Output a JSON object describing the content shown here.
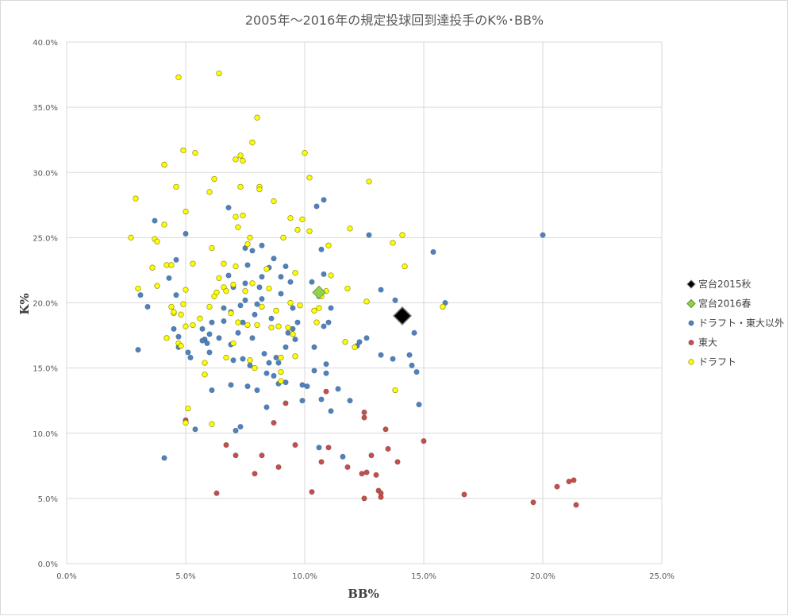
{
  "chart_data": {
    "type": "scatter",
    "title": "2005年～2016年の規定投球回到達投手のK%･BB%",
    "xlabel": "BB%",
    "ylabel": "K%",
    "xlim": [
      0,
      25
    ],
    "ylim": [
      0,
      40
    ],
    "xticks": [
      "0.0%",
      "5.0%",
      "10.0%",
      "15.0%",
      "20.0%",
      "25.0%"
    ],
    "yticks": [
      "0.0%",
      "5.0%",
      "10.0%",
      "15.0%",
      "20.0%",
      "25.0%",
      "30.0%",
      "35.0%",
      "40.0%"
    ],
    "grid": true,
    "legend_position": "right",
    "series": [
      {
        "name": "宮台2015秋",
        "marker": "diamond-large",
        "color": "#000000",
        "points": [
          [
            14.1,
            19.0
          ]
        ]
      },
      {
        "name": "宮台2016春",
        "marker": "diamond",
        "color": "#92d050",
        "points": [
          [
            10.6,
            20.8
          ]
        ]
      },
      {
        "name": "ドラフト・東大以外",
        "marker": "circle",
        "color": "#4f81bd",
        "points": [
          [
            3.0,
            16.4
          ],
          [
            3.1,
            20.6
          ],
          [
            3.4,
            19.7
          ],
          [
            3.7,
            26.3
          ],
          [
            4.1,
            8.1
          ],
          [
            4.3,
            21.9
          ],
          [
            4.5,
            18.0
          ],
          [
            4.6,
            20.6
          ],
          [
            4.6,
            23.3
          ],
          [
            4.7,
            16.6
          ],
          [
            5.0,
            25.3
          ],
          [
            5.1,
            16.2
          ],
          [
            5.2,
            15.8
          ],
          [
            5.4,
            10.3
          ],
          [
            5.7,
            18.0
          ],
          [
            5.8,
            17.2
          ],
          [
            5.9,
            16.9
          ],
          [
            6.0,
            17.6
          ],
          [
            6.0,
            16.2
          ],
          [
            6.1,
            13.3
          ],
          [
            6.1,
            18.5
          ],
          [
            6.4,
            17.3
          ],
          [
            6.6,
            19.6
          ],
          [
            6.8,
            27.3
          ],
          [
            6.8,
            22.1
          ],
          [
            6.9,
            13.7
          ],
          [
            6.9,
            19.3
          ],
          [
            6.9,
            16.8
          ],
          [
            7.0,
            21.2
          ],
          [
            7.0,
            15.6
          ],
          [
            7.1,
            10.2
          ],
          [
            7.2,
            17.7
          ],
          [
            7.3,
            10.5
          ],
          [
            7.3,
            19.8
          ],
          [
            7.4,
            15.7
          ],
          [
            7.4,
            18.5
          ],
          [
            7.5,
            24.2
          ],
          [
            7.5,
            20.2
          ],
          [
            7.5,
            21.5
          ],
          [
            7.6,
            22.9
          ],
          [
            7.6,
            13.6
          ],
          [
            7.7,
            15.2
          ],
          [
            7.8,
            17.3
          ],
          [
            7.8,
            24.0
          ],
          [
            7.9,
            19.1
          ],
          [
            8.0,
            13.3
          ],
          [
            8.1,
            21.2
          ],
          [
            8.2,
            24.4
          ],
          [
            8.2,
            22.0
          ],
          [
            8.2,
            20.3
          ],
          [
            8.3,
            16.1
          ],
          [
            8.4,
            14.6
          ],
          [
            8.4,
            12.0
          ],
          [
            8.5,
            22.7
          ],
          [
            8.5,
            15.4
          ],
          [
            8.6,
            18.8
          ],
          [
            8.7,
            23.4
          ],
          [
            8.7,
            14.4
          ],
          [
            8.8,
            15.8
          ],
          [
            8.9,
            13.8
          ],
          [
            8.9,
            15.4
          ],
          [
            9.0,
            20.7
          ],
          [
            9.0,
            22.0
          ],
          [
            9.2,
            22.8
          ],
          [
            9.2,
            16.6
          ],
          [
            9.2,
            13.9
          ],
          [
            9.3,
            17.7
          ],
          [
            9.4,
            21.6
          ],
          [
            9.5,
            19.6
          ],
          [
            9.5,
            18.0
          ],
          [
            9.6,
            17.2
          ],
          [
            9.7,
            18.5
          ],
          [
            9.9,
            12.5
          ],
          [
            9.9,
            13.7
          ],
          [
            10.1,
            13.6
          ],
          [
            10.3,
            21.6
          ],
          [
            10.4,
            14.8
          ],
          [
            10.4,
            16.6
          ],
          [
            10.5,
            27.4
          ],
          [
            10.6,
            20.5
          ],
          [
            10.6,
            8.9
          ],
          [
            10.7,
            12.6
          ],
          [
            10.7,
            24.1
          ],
          [
            10.8,
            18.2
          ],
          [
            10.8,
            22.2
          ],
          [
            10.8,
            27.9
          ],
          [
            10.9,
            15.3
          ],
          [
            10.9,
            14.6
          ],
          [
            11.0,
            18.5
          ],
          [
            11.1,
            19.6
          ],
          [
            11.1,
            11.7
          ],
          [
            11.4,
            13.4
          ],
          [
            11.6,
            8.2
          ],
          [
            11.9,
            12.5
          ],
          [
            12.2,
            16.7
          ],
          [
            12.3,
            17.0
          ],
          [
            12.6,
            17.3
          ],
          [
            12.7,
            25.2
          ],
          [
            13.2,
            21.0
          ],
          [
            13.2,
            16.0
          ],
          [
            13.7,
            15.7
          ],
          [
            13.8,
            20.2
          ],
          [
            14.4,
            16.0
          ],
          [
            14.5,
            15.2
          ],
          [
            14.6,
            17.7
          ],
          [
            14.7,
            14.7
          ],
          [
            14.8,
            12.2
          ],
          [
            15.4,
            23.9
          ],
          [
            15.9,
            20.0
          ],
          [
            20.0,
            25.2
          ],
          [
            5.7,
            17.1
          ],
          [
            4.7,
            17.4
          ],
          [
            6.6,
            18.6
          ],
          [
            8.0,
            19.9
          ]
        ]
      },
      {
        "name": "東大",
        "marker": "circle",
        "color": "#c0504d",
        "points": [
          [
            5.0,
            11.0
          ],
          [
            6.3,
            5.4
          ],
          [
            6.7,
            9.1
          ],
          [
            7.1,
            8.3
          ],
          [
            7.9,
            6.9
          ],
          [
            8.2,
            8.3
          ],
          [
            8.7,
            10.8
          ],
          [
            8.9,
            7.4
          ],
          [
            9.2,
            12.3
          ],
          [
            9.6,
            9.1
          ],
          [
            10.3,
            5.5
          ],
          [
            10.7,
            7.8
          ],
          [
            10.9,
            13.2
          ],
          [
            11.0,
            8.9
          ],
          [
            11.8,
            7.4
          ],
          [
            12.4,
            6.9
          ],
          [
            12.5,
            5.0
          ],
          [
            12.5,
            11.6
          ],
          [
            12.5,
            11.2
          ],
          [
            12.6,
            7.0
          ],
          [
            12.8,
            8.3
          ],
          [
            13.0,
            6.8
          ],
          [
            13.1,
            5.6
          ],
          [
            13.2,
            5.1
          ],
          [
            13.2,
            5.4
          ],
          [
            13.4,
            10.3
          ],
          [
            13.5,
            8.8
          ],
          [
            13.9,
            7.8
          ],
          [
            15.0,
            9.4
          ],
          [
            16.7,
            5.3
          ],
          [
            19.6,
            4.7
          ],
          [
            20.6,
            5.9
          ],
          [
            21.1,
            6.3
          ],
          [
            21.3,
            6.4
          ],
          [
            21.4,
            4.5
          ]
        ]
      },
      {
        "name": "ドラフト",
        "marker": "circle",
        "color": "#ffff00",
        "points": [
          [
            2.7,
            25.0
          ],
          [
            2.9,
            28.0
          ],
          [
            3.0,
            21.1
          ],
          [
            3.6,
            22.7
          ],
          [
            3.7,
            24.9
          ],
          [
            3.8,
            24.7
          ],
          [
            3.8,
            21.3
          ],
          [
            4.1,
            30.6
          ],
          [
            4.1,
            26.0
          ],
          [
            4.2,
            22.9
          ],
          [
            4.2,
            17.3
          ],
          [
            4.4,
            19.7
          ],
          [
            4.4,
            22.9
          ],
          [
            4.5,
            19.2
          ],
          [
            4.5,
            19.3
          ],
          [
            4.6,
            28.9
          ],
          [
            4.7,
            37.3
          ],
          [
            4.7,
            16.9
          ],
          [
            4.8,
            19.1
          ],
          [
            4.8,
            16.7
          ],
          [
            4.9,
            31.7
          ],
          [
            4.9,
            19.9
          ],
          [
            5.0,
            27.0
          ],
          [
            5.0,
            21.0
          ],
          [
            5.0,
            18.2
          ],
          [
            5.0,
            10.8
          ],
          [
            5.1,
            11.9
          ],
          [
            5.3,
            18.3
          ],
          [
            5.3,
            23.0
          ],
          [
            5.4,
            31.5
          ],
          [
            5.6,
            18.8
          ],
          [
            5.8,
            15.4
          ],
          [
            5.8,
            14.5
          ],
          [
            6.0,
            28.5
          ],
          [
            6.0,
            19.7
          ],
          [
            6.1,
            24.2
          ],
          [
            6.1,
            10.7
          ],
          [
            6.2,
            29.5
          ],
          [
            6.2,
            20.5
          ],
          [
            6.3,
            20.8
          ],
          [
            6.4,
            37.6
          ],
          [
            6.4,
            21.9
          ],
          [
            6.6,
            23.0
          ],
          [
            6.6,
            21.2
          ],
          [
            6.7,
            15.8
          ],
          [
            6.7,
            20.9
          ],
          [
            6.9,
            19.2
          ],
          [
            7.0,
            21.4
          ],
          [
            7.0,
            16.9
          ],
          [
            7.1,
            26.6
          ],
          [
            7.1,
            31.0
          ],
          [
            7.1,
            22.8
          ],
          [
            7.2,
            18.5
          ],
          [
            7.2,
            25.8
          ],
          [
            7.3,
            31.3
          ],
          [
            7.3,
            28.9
          ],
          [
            7.4,
            30.9
          ],
          [
            7.4,
            26.7
          ],
          [
            7.5,
            20.9
          ],
          [
            7.6,
            18.3
          ],
          [
            7.6,
            24.5
          ],
          [
            7.7,
            25.0
          ],
          [
            7.7,
            15.6
          ],
          [
            7.8,
            21.5
          ],
          [
            7.8,
            32.3
          ],
          [
            7.9,
            15.0
          ],
          [
            8.0,
            18.3
          ],
          [
            8.0,
            34.2
          ],
          [
            8.1,
            28.9
          ],
          [
            8.1,
            28.7
          ],
          [
            8.2,
            19.7
          ],
          [
            8.4,
            22.6
          ],
          [
            8.5,
            21.1
          ],
          [
            8.6,
            18.1
          ],
          [
            8.7,
            27.8
          ],
          [
            8.8,
            19.4
          ],
          [
            8.9,
            18.2
          ],
          [
            9.0,
            14.7
          ],
          [
            9.0,
            15.8
          ],
          [
            9.0,
            14.0
          ],
          [
            9.1,
            25.0
          ],
          [
            9.3,
            18.1
          ],
          [
            9.4,
            20.0
          ],
          [
            9.4,
            26.5
          ],
          [
            9.5,
            17.6
          ],
          [
            9.6,
            15.9
          ],
          [
            9.6,
            22.3
          ],
          [
            9.7,
            25.6
          ],
          [
            9.8,
            19.8
          ],
          [
            9.9,
            26.4
          ],
          [
            10.0,
            31.5
          ],
          [
            10.2,
            29.6
          ],
          [
            10.2,
            25.5
          ],
          [
            10.4,
            19.4
          ],
          [
            10.5,
            18.5
          ],
          [
            10.6,
            19.6
          ],
          [
            10.7,
            20.5
          ],
          [
            10.9,
            20.9
          ],
          [
            11.0,
            24.4
          ],
          [
            11.1,
            22.1
          ],
          [
            11.7,
            17.0
          ],
          [
            11.8,
            21.1
          ],
          [
            11.9,
            25.7
          ],
          [
            12.1,
            16.6
          ],
          [
            12.6,
            20.1
          ],
          [
            12.7,
            29.3
          ],
          [
            13.8,
            13.3
          ],
          [
            13.7,
            24.6
          ],
          [
            14.1,
            25.2
          ],
          [
            14.2,
            22.8
          ],
          [
            15.8,
            19.7
          ]
        ]
      }
    ]
  }
}
